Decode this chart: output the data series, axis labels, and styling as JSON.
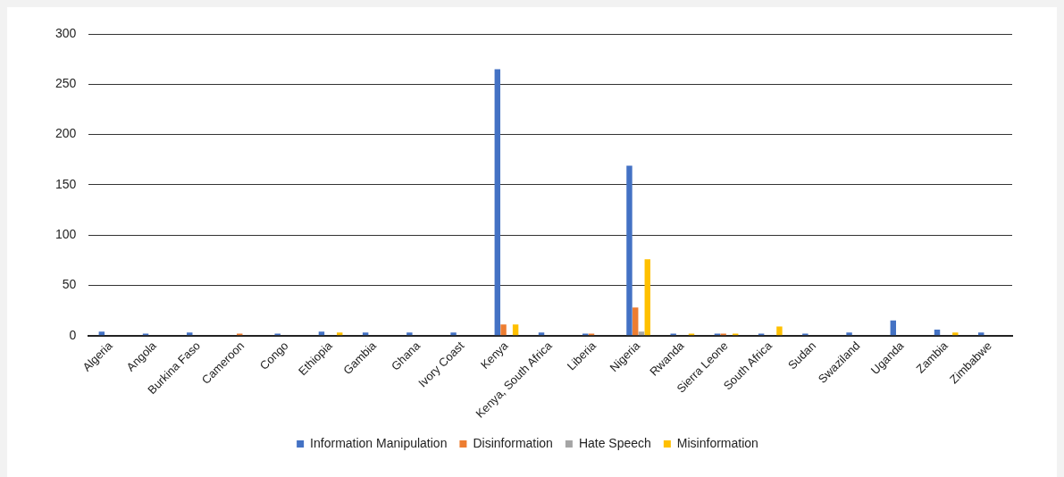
{
  "chart_data": {
    "type": "bar",
    "categories": [
      "Algeria",
      "Angola",
      "Burkina Faso",
      "Cameroon",
      "Congo",
      "Ethiopia",
      "Gambia",
      "Ghana",
      "Ivory Coast",
      "Kenya",
      "Kenya, South Africa",
      "Liberia",
      "Nigeria",
      "Rwanda",
      "Sierra Leone",
      "South Africa",
      "Sudan",
      "Swaziland",
      "Uganda",
      "Zambia",
      "Zimbabwe"
    ],
    "series": [
      {
        "name": "Information Manipulation",
        "color": "#4472c4",
        "values": [
          4,
          2,
          3,
          null,
          2,
          4,
          3,
          3,
          3,
          265,
          3,
          2,
          169,
          2,
          2,
          2,
          2,
          3,
          15,
          6,
          3
        ]
      },
      {
        "name": "Disinformation",
        "color": "#ed7d31",
        "values": [
          null,
          null,
          null,
          2,
          null,
          null,
          null,
          null,
          null,
          11,
          null,
          2,
          28,
          null,
          2,
          null,
          null,
          null,
          null,
          null,
          null
        ]
      },
      {
        "name": "Hate Speech",
        "color": "#a5a5a5",
        "values": [
          null,
          null,
          null,
          null,
          null,
          null,
          null,
          null,
          null,
          null,
          null,
          null,
          4,
          null,
          null,
          null,
          null,
          null,
          null,
          null,
          null
        ]
      },
      {
        "name": "Misinformation",
        "color": "#ffc000",
        "values": [
          null,
          null,
          null,
          null,
          null,
          3,
          null,
          null,
          null,
          11,
          null,
          null,
          76,
          2,
          2,
          9,
          null,
          null,
          null,
          3,
          null
        ]
      }
    ],
    "ylim": [
      0,
      300
    ],
    "yticks": [
      0,
      50,
      100,
      150,
      200,
      250,
      300
    ],
    "grid": "y",
    "legend": "bottom"
  }
}
